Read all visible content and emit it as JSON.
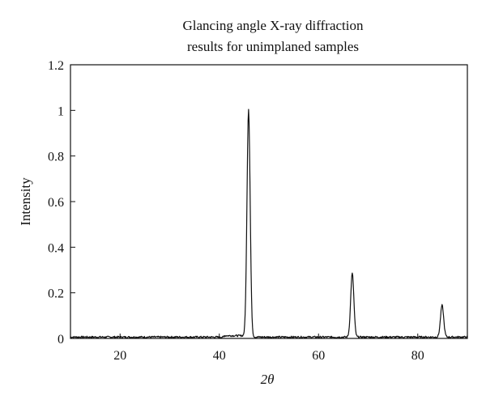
{
  "chart_data": {
    "type": "line",
    "title_lines": [
      "Glancing angle X-ray diffraction",
      "results for unimplaned samples"
    ],
    "xlabel": "2θ",
    "ylabel": "Intensity",
    "xlim": [
      10,
      90
    ],
    "ylim": [
      0,
      1.2
    ],
    "xticks": [
      20,
      40,
      60,
      80
    ],
    "yticks": [
      0,
      0.2,
      0.4,
      0.6,
      0.8,
      1,
      1.2
    ],
    "xtick_labels": [
      "20",
      "40",
      "60",
      "80"
    ],
    "ytick_labels": [
      "0",
      "0.2",
      "0.4",
      "0.6",
      "0.8",
      "1",
      "1.2"
    ],
    "grid": false,
    "legend": "none",
    "series": [
      {
        "peaks": [
          {
            "x": 45.9,
            "y": 1.0
          },
          {
            "x": 66.8,
            "y": 0.285
          },
          {
            "x": 84.9,
            "y": 0.145
          }
        ],
        "baseline": 0.006
      }
    ]
  }
}
